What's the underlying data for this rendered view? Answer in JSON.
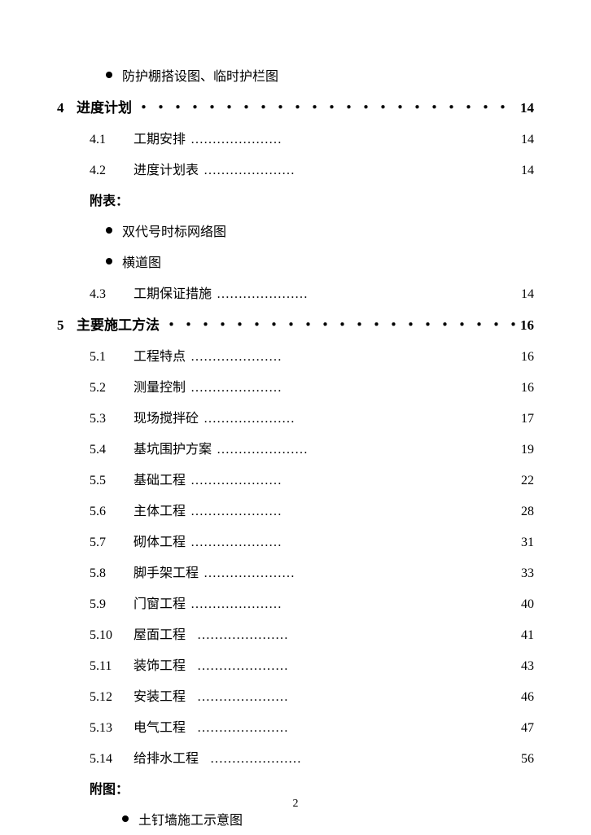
{
  "page_number": "2",
  "text_color": "#000000",
  "background_color": "#ffffff",
  "font_size_chapter": 17,
  "font_size_section": 16,
  "font_size_page_num": 14,
  "top_bullets": [
    "防护棚搭设图、临时护栏图"
  ],
  "chapters": [
    {
      "num": "4",
      "title": "进度计划",
      "page": "14",
      "sections": [
        {
          "num": "4.1",
          "title": "工期安排",
          "page": "14",
          "dots": "…………………"
        },
        {
          "num": "4.2",
          "title": "进度计划表",
          "page": "14",
          "dots": "…………………"
        }
      ],
      "appendix": {
        "label": "附表：",
        "bullets": [
          "双代号时标网络图",
          "横道图"
        ]
      },
      "sections_after": [
        {
          "num": "4.3",
          "title": "工期保证措施",
          "page": "14",
          "dots": "…………………"
        }
      ]
    },
    {
      "num": "5",
      "title": "主要施工方法",
      "page": "16",
      "sections": [
        {
          "num": "5.1",
          "title": "工程特点",
          "page": "16",
          "dots": "…………………"
        },
        {
          "num": "5.2",
          "title": "测量控制",
          "page": "16",
          "dots": "…………………"
        },
        {
          "num": "5.3",
          "title": "现场搅拌砼",
          "page": "17",
          "dots": "…………………"
        },
        {
          "num": "5.4",
          "title": "基坑围护方案",
          "page": "19",
          "dots": "…………………"
        },
        {
          "num": "5.5",
          "title": "基础工程",
          "page": "22",
          "dots": "…………………"
        },
        {
          "num": "5.6",
          "title": "主体工程",
          "page": "28",
          "dots": "…………………"
        },
        {
          "num": "5.7",
          "title": "砌体工程",
          "page": "31",
          "dots": "…………………"
        },
        {
          "num": "5.8",
          "title": "脚手架工程",
          "page": "33",
          "dots": "…………………"
        },
        {
          "num": "5.9",
          "title": "门窗工程",
          "page": "40",
          "dots": "…………………"
        },
        {
          "num": "5.10",
          "title": "屋面工程",
          "page": "41",
          "dots": "…………………",
          "space": true
        },
        {
          "num": "5.11",
          "title": "装饰工程",
          "page": "43",
          "dots": "…………………",
          "space": true
        },
        {
          "num": "5.12",
          "title": "安装工程",
          "page": "46",
          "dots": "…………………",
          "space": true
        },
        {
          "num": "5.13",
          "title": "电气工程",
          "page": "47",
          "dots": "…………………",
          "space": true
        },
        {
          "num": "5.14",
          "title": "给排水工程",
          "page": "56",
          "dots": "…………………",
          "space": true
        }
      ],
      "appendix": {
        "label": "附图：",
        "bullets": [
          "土钉墙施工示意图"
        ],
        "indented": true
      }
    }
  ],
  "chapter_dot_fill": "・・・・・・・・・・・・・・・・・・・・・・・・・・・・・・・・・"
}
